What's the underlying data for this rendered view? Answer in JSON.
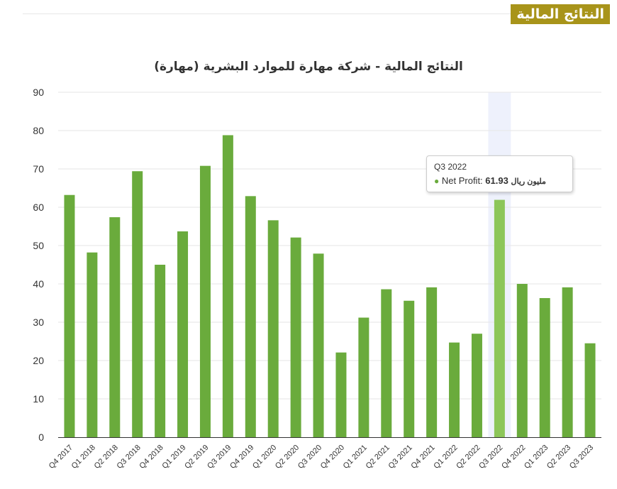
{
  "header": {
    "badge": "النتائج المالية"
  },
  "chart_data": {
    "type": "bar",
    "title": "النتائج المالية - شركة مهارة للموارد البشرية (مهارة)",
    "xlabel": "",
    "ylabel": "",
    "ylim": [
      0,
      90
    ],
    "yticks": [
      0,
      10,
      20,
      30,
      40,
      50,
      60,
      70,
      80,
      90
    ],
    "grid": true,
    "legend": "none",
    "categories": [
      "Q4 2017",
      "Q1 2018",
      "Q2 2018",
      "Q3 2018",
      "Q4 2018",
      "Q1 2019",
      "Q2 2019",
      "Q3 2019",
      "Q4 2019",
      "Q1 2020",
      "Q2 2020",
      "Q3 2020",
      "Q4 2020",
      "Q1 2021",
      "Q2 2021",
      "Q3 2021",
      "Q4 2021",
      "Q1 2022",
      "Q2 2022",
      "Q3 2022",
      "Q4 2022",
      "Q1 2023",
      "Q2 2023",
      "Q3 2023"
    ],
    "series": [
      {
        "name": "Net Profit",
        "color": "#6aab3c",
        "values": [
          63.2,
          48.2,
          57.4,
          69.4,
          45.0,
          53.7,
          70.8,
          78.8,
          62.9,
          56.6,
          52.1,
          47.9,
          22.1,
          31.2,
          38.6,
          35.6,
          39.1,
          24.7,
          27.0,
          61.93,
          40.0,
          36.3,
          39.1,
          24.5
        ]
      }
    ],
    "highlight_index": 19,
    "highlight_color": "#8cc65a",
    "hover_band_color": "#eef1fc"
  },
  "tooltip": {
    "category": "Q3 2022",
    "series_label": "Net Profit: ",
    "value": "61.93",
    "unit": "مليون ريال"
  }
}
